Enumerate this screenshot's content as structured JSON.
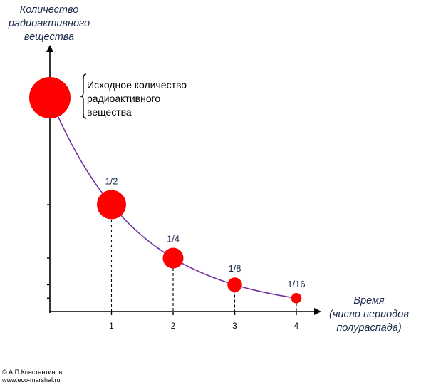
{
  "chart_data": {
    "type": "scatter",
    "ylabel_lines": [
      "Количество",
      "радиоактивного",
      "вещества"
    ],
    "xlabel_lines": [
      "Время",
      "(число периодов",
      "полураспада)"
    ],
    "x_ticks": [
      "1",
      "2",
      "3",
      "4"
    ],
    "xlim": [
      0,
      4.6
    ],
    "ylim": [
      0,
      1.15
    ],
    "points": [
      {
        "x": 0,
        "y": 1,
        "label": ""
      },
      {
        "x": 1,
        "y": 0.5,
        "label": "1/2"
      },
      {
        "x": 2,
        "y": 0.25,
        "label": "1/4"
      },
      {
        "x": 3,
        "y": 0.125,
        "label": "1/8"
      },
      {
        "x": 4,
        "y": 0.0625,
        "label": "1/16"
      }
    ],
    "y_ticks": [
      0.0625,
      0.125,
      0.25,
      0.5
    ],
    "annotation_lines": [
      "Исходное количество",
      "радиоактивного",
      "вещества"
    ],
    "point_color": "#ff0000",
    "curve_color": "#7030a0",
    "axis_color": "#000000",
    "point_size": "proportional to y",
    "curve": "exponential decay",
    "drop_lines": "dashed"
  },
  "credit_lines": [
    "© А.П.Константинов",
    "www.eco-marshal.ru"
  ]
}
